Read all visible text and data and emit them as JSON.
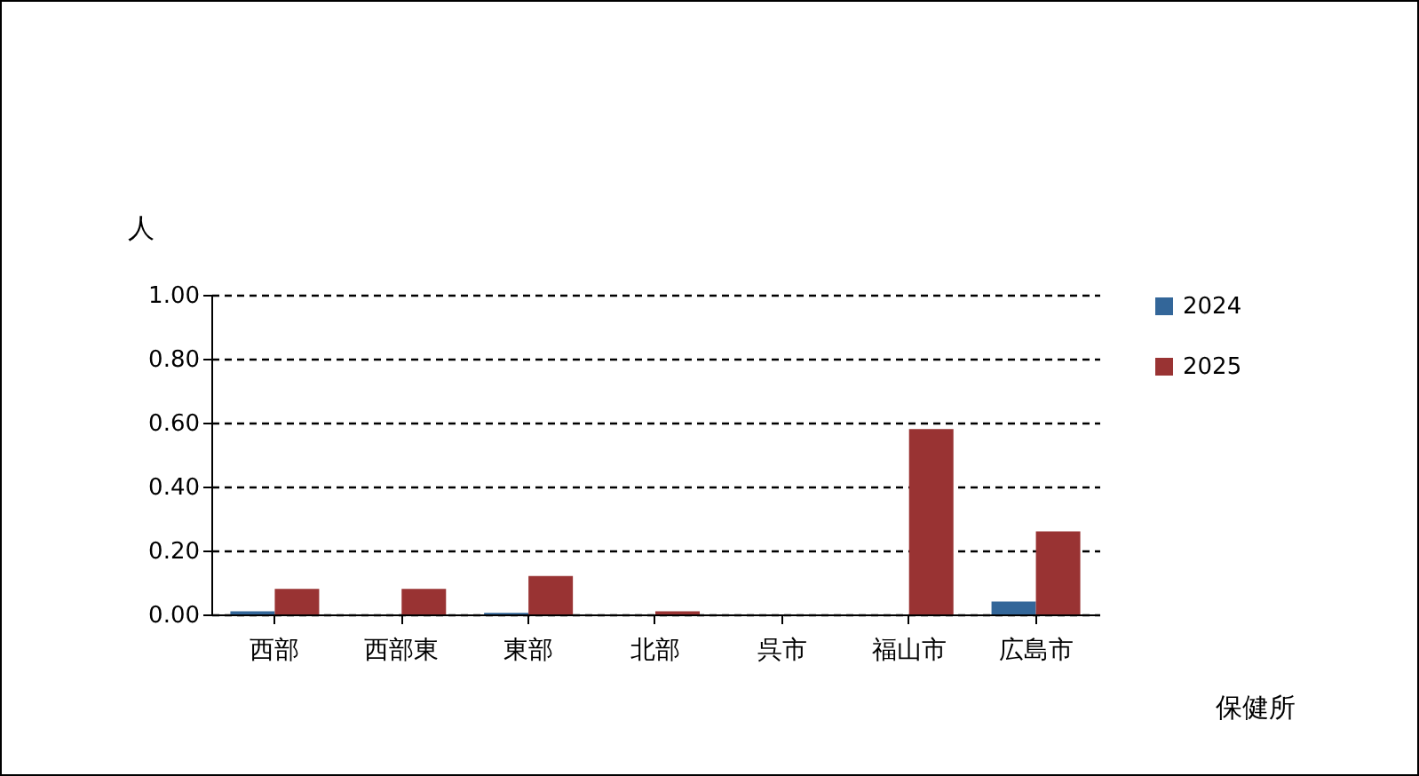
{
  "chart_data": {
    "type": "bar",
    "xlabel": "保健所",
    "ylabel": "人",
    "categories": [
      "西部",
      "西部東",
      "東部",
      "北部",
      "呉市",
      "福山市",
      "広島市"
    ],
    "series": [
      {
        "name": "2024",
        "color": "#336699",
        "values": [
          0.01,
          0,
          0.005,
          0,
          0,
          0,
          0.04
        ]
      },
      {
        "name": "2025",
        "color": "#993333",
        "values": [
          0.08,
          0.08,
          0.12,
          0.01,
          0,
          0.58,
          0.26
        ]
      }
    ],
    "ylim": [
      0,
      1
    ],
    "yticks": [
      {
        "value": 0,
        "label": "0.00"
      },
      {
        "value": 0.2,
        "label": "0.20"
      },
      {
        "value": 0.4,
        "label": "0.40"
      },
      {
        "value": 0.6,
        "label": "0.60"
      },
      {
        "value": 0.8,
        "label": "0.80"
      },
      {
        "value": 1,
        "label": "1.00"
      }
    ],
    "grid": "y",
    "legend": "right"
  }
}
